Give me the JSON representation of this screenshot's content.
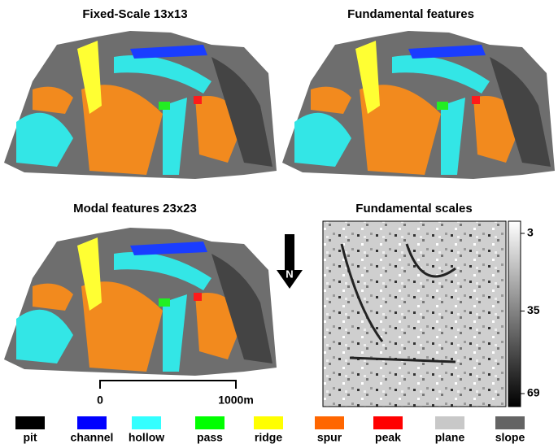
{
  "panels": [
    {
      "title": "Fixed-Scale 13x13"
    },
    {
      "title": "Fundamental features"
    },
    {
      "title": "Modal features 23x23"
    },
    {
      "title": "Fundamental scales"
    }
  ],
  "colorbar": {
    "lim": [
      3,
      69
    ],
    "ticks": [
      3,
      35,
      69
    ]
  },
  "north_label": "N",
  "scale_bar": {
    "start_label": "0",
    "end_label": "1000m"
  },
  "legend": [
    {
      "name": "pit",
      "color": "#000000"
    },
    {
      "name": "channel",
      "color": "#0000ff"
    },
    {
      "name": "hollow",
      "color": "#33ffff"
    },
    {
      "name": "pass",
      "color": "#00ff00"
    },
    {
      "name": "ridge",
      "color": "#ffff00"
    },
    {
      "name": "spur",
      "color": "#ff6600"
    },
    {
      "name": "peak",
      "color": "#ff0000"
    },
    {
      "name": "plane",
      "color": "#c8c8c8"
    },
    {
      "name": "slope",
      "color": "#646464"
    }
  ]
}
